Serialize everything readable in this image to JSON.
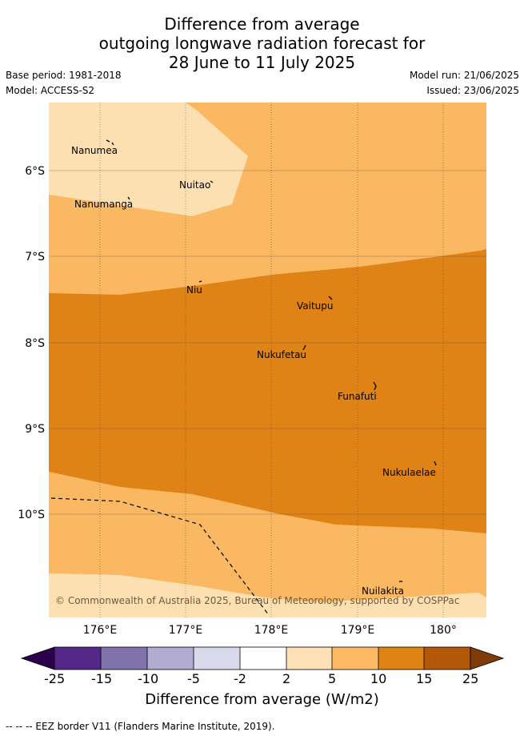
{
  "header": {
    "title_lines": [
      "Difference from average",
      "outgoing longwave radiation forecast for",
      "28 June to 11 July 2025"
    ],
    "base_period": "Base period: 1981-2018",
    "model": "Model: ACCESS-S2",
    "model_run": "Model run: 21/06/2025",
    "issued": "Issued: 23/06/2025"
  },
  "map": {
    "lon_labels": [
      "176°E",
      "177°E",
      "178°E",
      "179°E",
      "180°"
    ],
    "lat_labels": [
      "6°S",
      "7°S",
      "8°S",
      "9°S",
      "10°S"
    ],
    "places": [
      "Nanumea",
      "Nuitao",
      "Nanumanga",
      "Niu",
      "Vaitupu",
      "Nukufetau",
      "Funafuti",
      "Nukulaelae",
      "Nuilakita"
    ],
    "copyright": "© Commonwealth of Australia 2025, Bureau of Meteorology, supported by COSPPac",
    "colors": {
      "2_to_5": "#fde0b2",
      "5_to_10": "#fbb862",
      "10_to_15": "#e08316",
      "15_to_25": "#b35806"
    }
  },
  "colorbar": {
    "tick_labels": [
      "-25",
      "-15",
      "-10",
      "-5",
      "-2",
      "2",
      "5",
      "10",
      "15",
      "25"
    ],
    "colors": [
      "#2d004b",
      "#542788",
      "#8073ac",
      "#b2abd2",
      "#d8daeb",
      "#ffffff",
      "#fee0b6",
      "#fdb863",
      "#e08214",
      "#b35806",
      "#7f3b08"
    ],
    "title": "Difference from average (W/m2)"
  },
  "footer": {
    "legend_text": "--  --  -- EEZ border V11 (Flanders Marine Institute, 2019)."
  }
}
